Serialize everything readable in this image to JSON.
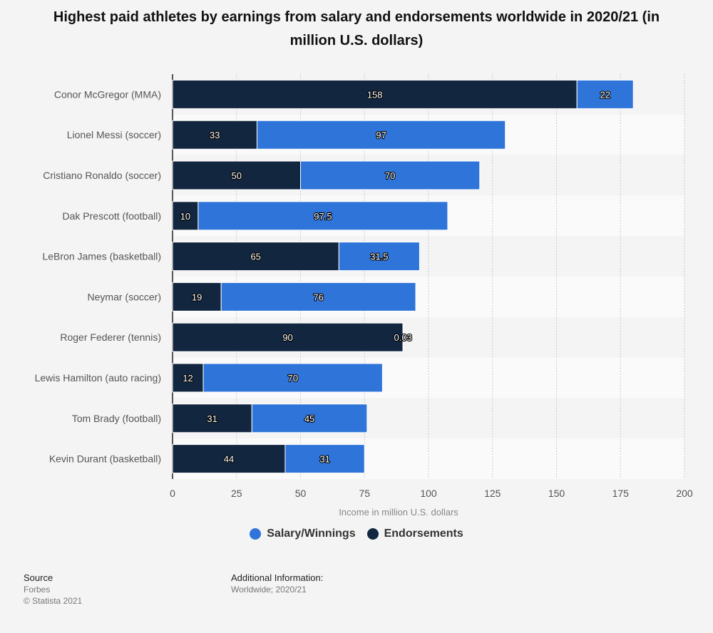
{
  "chart_data": {
    "type": "bar",
    "orientation": "horizontal",
    "stacked": true,
    "title": "Highest paid athletes by earnings from salary and endorsements worldwide in 2020/21 (in million U.S. dollars)",
    "categories": [
      "Conor McGregor (MMA)",
      "Lionel Messi (soccer)",
      "Cristiano Ronaldo (soccer)",
      "Dak Prescott (football)",
      "LeBron James (basketball)",
      "Neymar (soccer)",
      "Roger Federer (tennis)",
      "Lewis Hamilton (auto racing)",
      "Tom Brady (football)",
      "Kevin Durant (basketball)"
    ],
    "series": [
      {
        "name": "Endorsements",
        "color": "#12263f",
        "values": [
          158,
          33,
          50,
          10,
          65,
          19,
          90,
          12,
          31,
          44
        ]
      },
      {
        "name": "Salary/Winnings",
        "color": "#2f74d9",
        "values": [
          22,
          97,
          70,
          97.5,
          31.5,
          76,
          0.03,
          70,
          45,
          31
        ]
      }
    ],
    "value_labels": [
      [
        "158",
        "33",
        "50",
        "10",
        "65",
        "19",
        "90",
        "12",
        "31",
        "44"
      ],
      [
        "22",
        "97",
        "70",
        "97.5",
        "31.5",
        "76",
        "0.03",
        "70",
        "45",
        "31"
      ]
    ],
    "xlabel": "Income in million U.S. dollars",
    "xlim": [
      0,
      200
    ],
    "xticks": [
      0,
      25,
      50,
      75,
      100,
      125,
      150,
      175,
      200
    ],
    "grid": true,
    "legend_position": "bottom"
  },
  "legend": {
    "items": [
      {
        "label": "Salary/Winnings",
        "color": "#2f74d9"
      },
      {
        "label": "Endorsements",
        "color": "#12263f"
      }
    ]
  },
  "footer": {
    "source_heading": "Source",
    "source_name": "Forbes",
    "copyright": "© Statista 2021",
    "info_heading": "Additional Information:",
    "info_text": "Worldwide; 2020/21"
  }
}
